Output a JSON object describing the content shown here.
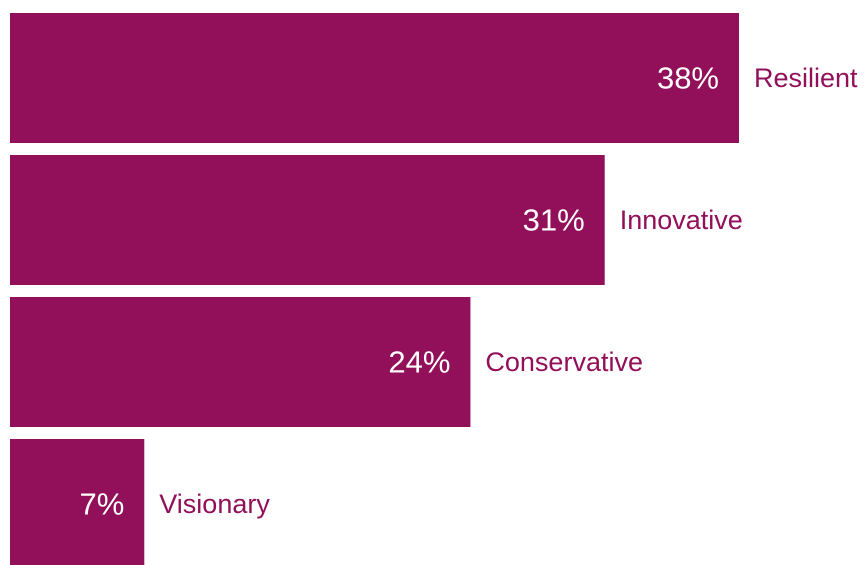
{
  "chart_data": {
    "type": "bar",
    "orientation": "horizontal",
    "categories": [
      "Resilient",
      "Innovative",
      "Conservative",
      "Visionary"
    ],
    "values": [
      38,
      31,
      24,
      7
    ],
    "value_labels": [
      "38%",
      "31%",
      "24%",
      "7%"
    ],
    "xlim": [
      0,
      38
    ],
    "grid": false,
    "legend": "none",
    "title": "",
    "xlabel": "",
    "ylabel": ""
  },
  "colors": {
    "bar": "#920F59",
    "label": "#920F59",
    "value_text": "#ffffff",
    "background": "#ffffff"
  }
}
